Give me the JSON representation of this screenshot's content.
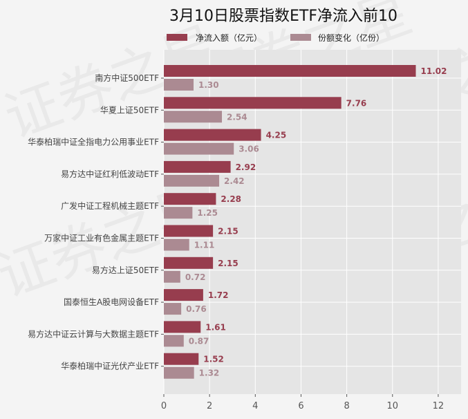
{
  "chart_data": {
    "type": "bar",
    "orientation": "horizontal",
    "title": "3月10日股票指数ETF净流入前10",
    "categories": [
      "南方中证500ETF",
      "华夏上证50ETF",
      "华泰柏瑞中证全指电力公用事业ETF",
      "易方达中证红利低波动ETF",
      "广发中证工程机械主题ETF",
      "万家中证工业有色金属主题ETF",
      "易方达上证50ETF",
      "国泰恒生A股电网设备ETF",
      "易方达中证云计算与大数据主题ETF",
      "华泰柏瑞中证光伏产业ETF"
    ],
    "series": [
      {
        "name": "净流入额（亿元）",
        "color": "#973d4e",
        "values": [
          11.02,
          7.76,
          4.25,
          2.92,
          2.28,
          2.15,
          2.15,
          1.72,
          1.61,
          1.52
        ],
        "labels": [
          "11.02",
          "7.76",
          "4.25",
          "2.92",
          "2.28",
          "2.15",
          "2.15",
          "1.72",
          "1.61",
          "1.52"
        ]
      },
      {
        "name": "份额变化（亿份）",
        "color": "#ab8a92",
        "values": [
          1.3,
          2.54,
          3.06,
          2.42,
          1.25,
          1.11,
          0.72,
          0.76,
          0.87,
          1.32
        ],
        "labels": [
          "1.30",
          "2.54",
          "3.06",
          "2.42",
          "1.25",
          "1.11",
          "0.72",
          "0.76",
          "0.87",
          "1.32"
        ]
      }
    ],
    "xlabel": "",
    "ylabel": "",
    "xlim": [
      0,
      13
    ],
    "xticks": [
      "0",
      "2",
      "4",
      "6",
      "8",
      "10",
      "12"
    ],
    "grid": true,
    "legend_position": "top"
  },
  "watermark": "证券之星"
}
